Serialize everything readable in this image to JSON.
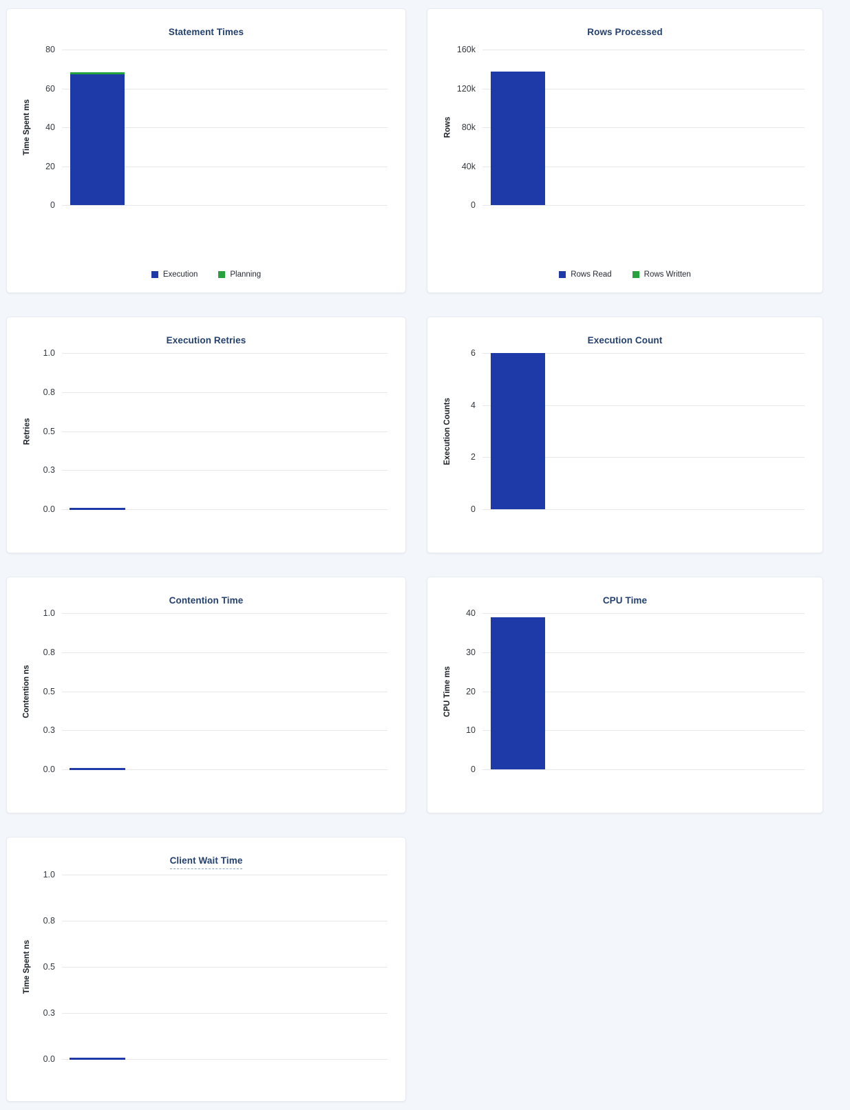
{
  "page": {
    "background": "#f3f6fa",
    "card_background": "#ffffff"
  },
  "colors": {
    "bar_blue": "#1e3aa8",
    "bar_green": "#25a13d",
    "title_navy": "#23406f",
    "gridline": "#e6e7e9",
    "tick_text": "#33383f"
  },
  "chart_data": [
    {
      "id": "statement-times",
      "type": "bar",
      "title": "Statement Times",
      "ylabel": "Time Spent ms",
      "ylim": [
        0,
        80
      ],
      "yticks": [
        "80",
        "60",
        "40",
        "20",
        "0"
      ],
      "grid": true,
      "legend_position": "bottom",
      "categories": [
        ""
      ],
      "series": [
        {
          "name": "Execution",
          "color": "#1e3aa8",
          "values": [
            67.4
          ]
        },
        {
          "name": "Planning",
          "color": "#25a13d",
          "values": [
            0.9
          ]
        }
      ]
    },
    {
      "id": "rows-processed",
      "type": "bar",
      "title": "Rows Processed",
      "ylabel": "Rows",
      "ylim": [
        0,
        160000
      ],
      "yticks": [
        "160k",
        "120k",
        "80k",
        "40k",
        "0"
      ],
      "grid": true,
      "legend_position": "bottom",
      "categories": [
        ""
      ],
      "series": [
        {
          "name": "Rows Read",
          "color": "#1e3aa8",
          "values": [
            137000
          ]
        },
        {
          "name": "Rows Written",
          "color": "#25a13d",
          "values": [
            0
          ]
        }
      ]
    },
    {
      "id": "execution-retries",
      "type": "bar",
      "title": "Execution Retries",
      "ylabel": "Retries",
      "ylim": [
        0,
        1
      ],
      "yticks": [
        "1.0",
        "0.8",
        "0.5",
        "0.3",
        "0.0"
      ],
      "grid": true,
      "categories": [
        ""
      ],
      "series": [
        {
          "color": "#1e3aa8",
          "values": [
            0
          ]
        }
      ]
    },
    {
      "id": "execution-count",
      "type": "bar",
      "title": "Execution Count",
      "ylabel": "Execution Counts",
      "ylim": [
        0,
        6
      ],
      "yticks": [
        "6",
        "4",
        "2",
        "0"
      ],
      "grid": true,
      "categories": [
        ""
      ],
      "series": [
        {
          "color": "#1e3aa8",
          "values": [
            6
          ]
        }
      ]
    },
    {
      "id": "contention-time",
      "type": "bar",
      "title": "Contention Time",
      "ylabel": "Contention ns",
      "ylim": [
        0,
        1
      ],
      "yticks": [
        "1.0",
        "0.8",
        "0.5",
        "0.3",
        "0.0"
      ],
      "grid": true,
      "categories": [
        ""
      ],
      "series": [
        {
          "color": "#1e3aa8",
          "values": [
            0
          ]
        }
      ]
    },
    {
      "id": "cpu-time",
      "type": "bar",
      "title": "CPU Time",
      "ylabel": "CPU Time ms",
      "ylim": [
        0,
        40
      ],
      "yticks": [
        "40",
        "30",
        "20",
        "10",
        "0"
      ],
      "grid": true,
      "categories": [
        ""
      ],
      "series": [
        {
          "color": "#1e3aa8",
          "values": [
            39
          ]
        }
      ]
    },
    {
      "id": "client-wait-time",
      "type": "bar",
      "title": "Client Wait Time",
      "title_has_tooltip_underline": true,
      "ylabel": "Time Spent ns",
      "ylim": [
        0,
        1
      ],
      "yticks": [
        "1.0",
        "0.8",
        "0.5",
        "0.3",
        "0.0"
      ],
      "grid": true,
      "categories": [
        ""
      ],
      "series": [
        {
          "color": "#1e3aa8",
          "values": [
            0
          ]
        }
      ]
    }
  ]
}
